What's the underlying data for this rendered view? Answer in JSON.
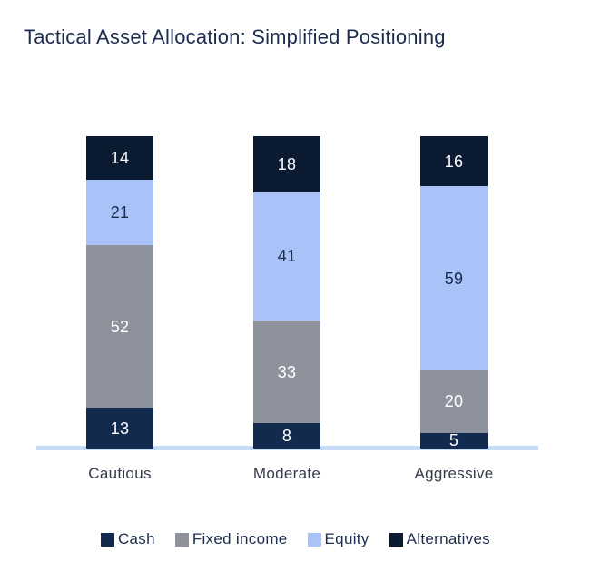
{
  "title": "Tactical Asset Allocation: Simplified Positioning",
  "colors": {
    "title_text": "#1d2c4f",
    "category_text": "#343b4b",
    "axis_line": "#c7dbf6",
    "background": "#ffffff",
    "cash": "#112a4e",
    "fixed_income": "#8e929d",
    "equity": "#a9c3f8",
    "alternatives": "#0b1b31"
  },
  "chart_data": {
    "type": "bar",
    "stacked": true,
    "title": "Tactical Asset Allocation: Simplified Positioning",
    "categories": [
      "Cautious",
      "Moderate",
      "Aggressive"
    ],
    "series": [
      {
        "name": "Cash",
        "values": [
          13,
          8,
          5
        ],
        "color": "#112a4e",
        "label_color": "#ffffff"
      },
      {
        "name": "Fixed income",
        "values": [
          52,
          33,
          20
        ],
        "color": "#8e929d",
        "label_color": "#ffffff"
      },
      {
        "name": "Equity",
        "values": [
          21,
          41,
          59
        ],
        "color": "#a9c3f8",
        "label_color": "#1b2a4a"
      },
      {
        "name": "Alternatives",
        "values": [
          14,
          18,
          16
        ],
        "color": "#0b1b31",
        "label_color": "#ffffff"
      }
    ],
    "stack_order_bottom_to_top": [
      "Cash",
      "Fixed income",
      "Equity",
      "Alternatives"
    ],
    "totals": [
      100,
      100,
      100
    ],
    "xlabel": "",
    "ylabel": "",
    "ylim": [
      0,
      100
    ],
    "grid": false,
    "legend_position": "bottom",
    "data_labels": true
  },
  "legend": {
    "items": [
      {
        "label": "Cash",
        "color": "#112a4e"
      },
      {
        "label": "Fixed income",
        "color": "#8e929d"
      },
      {
        "label": "Equity",
        "color": "#a9c3f8"
      },
      {
        "label": "Alternatives",
        "color": "#0b1b31"
      }
    ]
  }
}
